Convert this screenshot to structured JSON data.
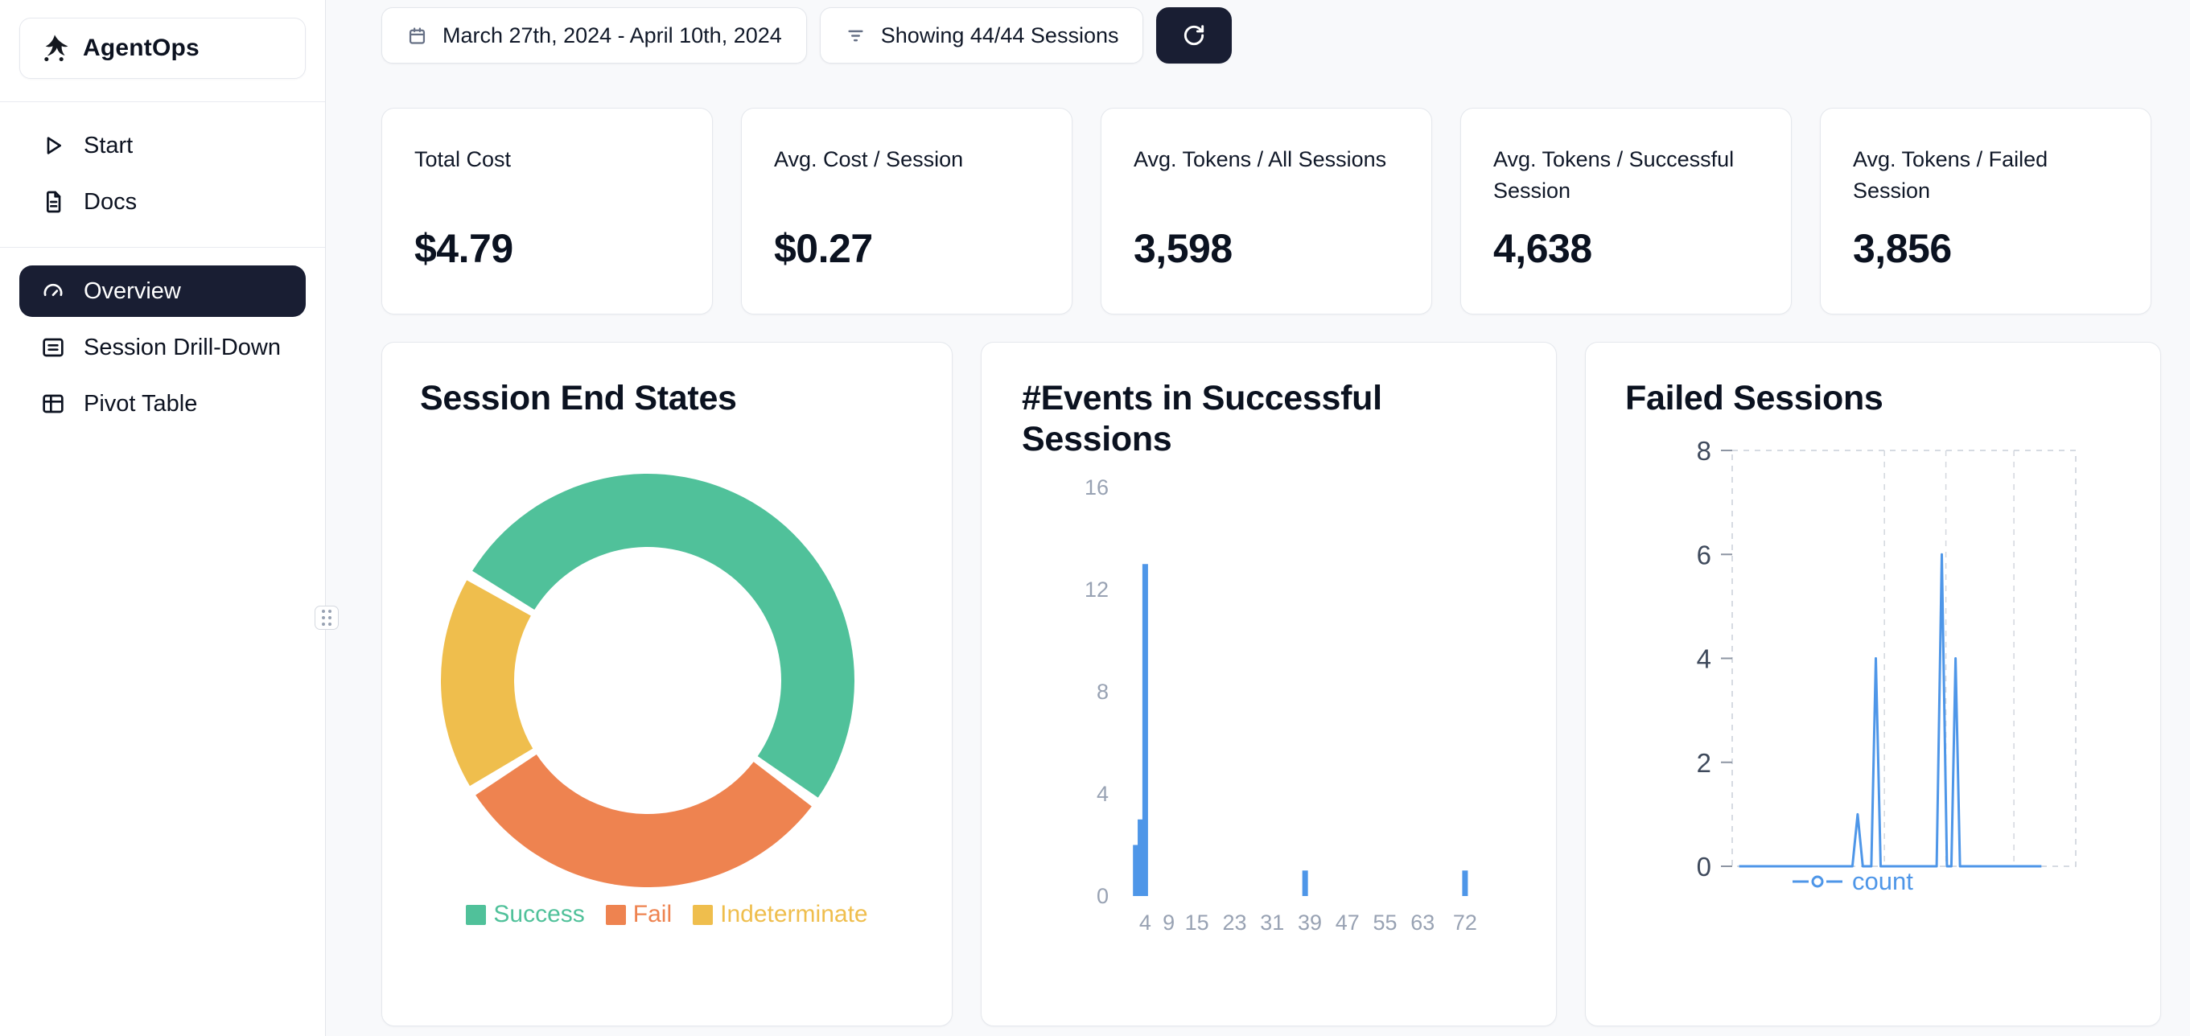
{
  "app": {
    "name": "AgentOps"
  },
  "sidebar": {
    "top_items": [
      {
        "label": "Start",
        "icon": "play-icon"
      },
      {
        "label": "Docs",
        "icon": "document-icon"
      }
    ],
    "nav_items": [
      {
        "label": "Overview",
        "icon": "gauge-icon",
        "active": true
      },
      {
        "label": "Session Drill-Down",
        "icon": "list-icon",
        "active": false
      },
      {
        "label": "Pivot Table",
        "icon": "table-icon",
        "active": false
      }
    ]
  },
  "toolbar": {
    "date_range": "March 27th, 2024 - April 10th, 2024",
    "sessions": "Showing 44/44 Sessions"
  },
  "stats": [
    {
      "label": "Total Cost",
      "value": "$4.79"
    },
    {
      "label": "Avg. Cost / Session",
      "value": "$0.27"
    },
    {
      "label": "Avg. Tokens / All Sessions",
      "value": "3,598"
    },
    {
      "label": "Avg. Tokens / Successful Session",
      "value": "4,638"
    },
    {
      "label": "Avg. Tokens / Failed Session",
      "value": "3,856"
    }
  ],
  "chart_data": [
    {
      "type": "pie",
      "variant": "donut",
      "title": "Session End States",
      "labels": [
        "Success",
        "Fail",
        "Indeterminate"
      ],
      "values": [
        52,
        31,
        17
      ],
      "value_unit": "percent_estimate",
      "colors": [
        "#50c19a",
        "#ee8350",
        "#efbe4d"
      ],
      "legend_position": "bottom",
      "start_angle": 302,
      "pad_angle": 3
    },
    {
      "type": "bar",
      "title": "#Events in Successful Sessions",
      "bars": [
        {
          "x": 2,
          "value": 2
        },
        {
          "x": 3,
          "value": 3
        },
        {
          "x": 4,
          "value": 13
        },
        {
          "x": 38,
          "value": 1
        },
        {
          "x": 72,
          "value": 1
        }
      ],
      "xticks": [
        4,
        9,
        15,
        23,
        31,
        39,
        47,
        55,
        63,
        72
      ],
      "yticks": [
        0,
        4,
        8,
        12,
        16
      ],
      "xlim": [
        0,
        78
      ],
      "ylim": [
        0,
        16
      ],
      "color": "#4e96e8",
      "grid": false
    },
    {
      "type": "line",
      "title": "Failed Sessions",
      "series": [
        {
          "name": "count",
          "color": "#4e96e8",
          "points": [
            [
              0.02,
              0
            ],
            [
              0.35,
              0
            ],
            [
              0.365,
              1
            ],
            [
              0.38,
              0
            ],
            [
              0.405,
              0
            ],
            [
              0.418,
              4
            ],
            [
              0.432,
              0
            ],
            [
              0.595,
              0
            ],
            [
              0.61,
              6
            ],
            [
              0.625,
              0
            ],
            [
              0.638,
              0
            ],
            [
              0.65,
              4
            ],
            [
              0.663,
              0
            ],
            [
              0.9,
              0
            ]
          ]
        }
      ],
      "yticks": [
        0,
        2,
        4,
        6,
        8
      ],
      "ylim": [
        0,
        8
      ],
      "xlim": [
        0,
        1
      ],
      "gridlines_x": [
        0.443,
        0.622,
        0.82
      ],
      "grid_dashed": true,
      "legend_position": "bottom"
    }
  ]
}
